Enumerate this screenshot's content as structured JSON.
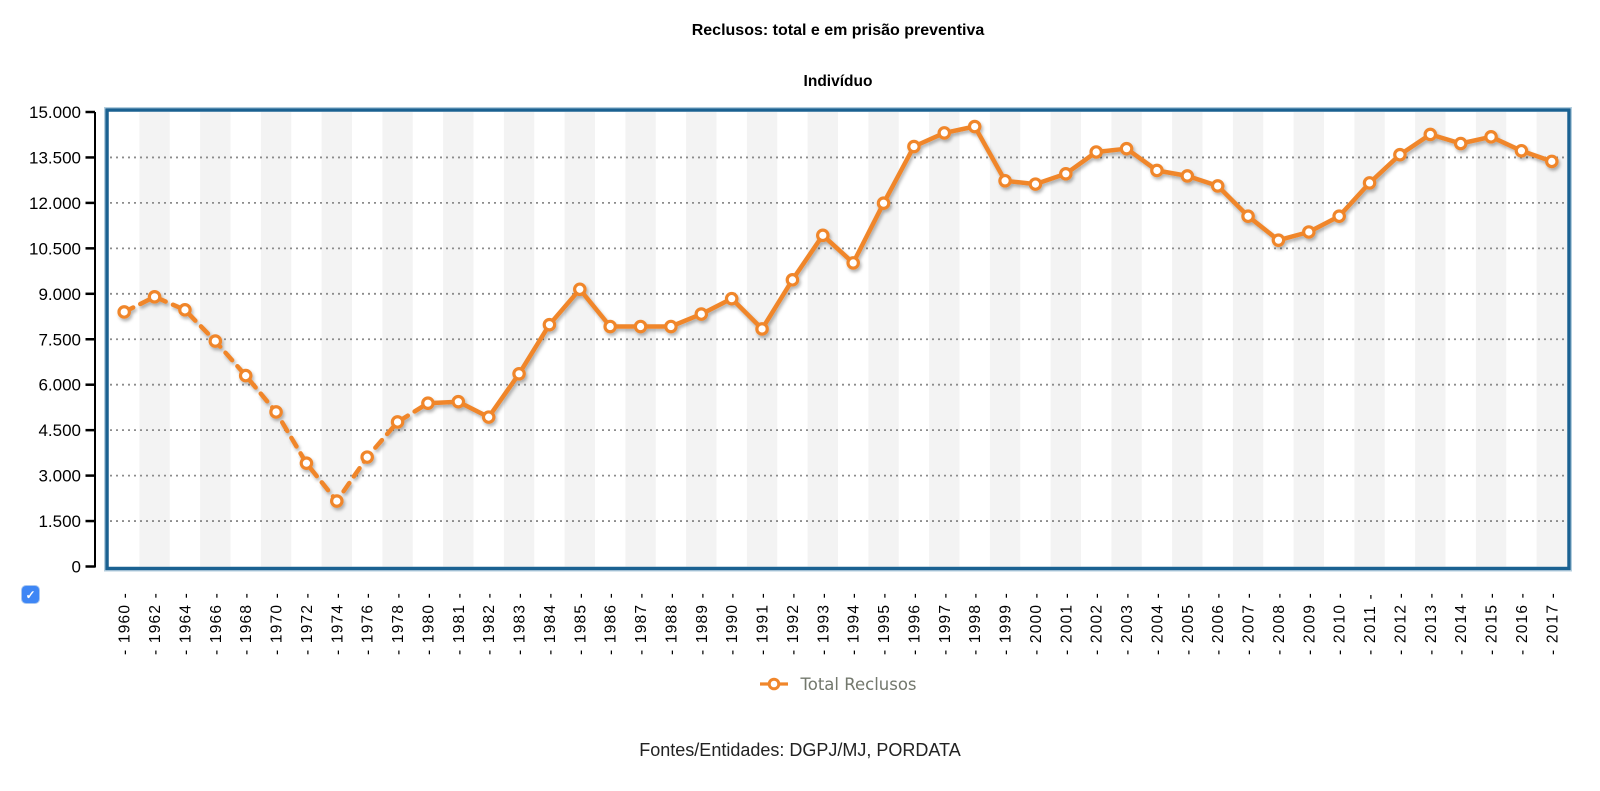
{
  "header": {
    "title": "Reclusos: total e em prisão preventiva",
    "subtitle": "Indivíduo"
  },
  "legend": {
    "label": "Total Reclusos",
    "marker": "open-circle-on-line-icon",
    "text_color": "#73786D"
  },
  "controls": {
    "series_checkbox": {
      "checked": true,
      "glyph": "✓"
    }
  },
  "footer": {
    "source": "Fontes/Entidades: DGPJ/MJ, PORDATA"
  },
  "colors": {
    "series": "#F0862B",
    "marker_fill": "#FFFFFF",
    "plot_border": "#1A6191",
    "plot_border_halo": "#B3CEDE",
    "grid": "#8C8C8C",
    "stripe": "#F3F3F3",
    "axis": "#000000",
    "checkbox": "#3E86F5"
  },
  "chart_data": {
    "type": "line",
    "title": "Reclusos: total e em prisão preventiva",
    "subtitle": "Indivíduo",
    "xlabel": "",
    "ylabel": "Indivíduo",
    "ylim": [
      0,
      15000
    ],
    "y_tick_step": 1500,
    "y_tick_labels": [
      "0",
      "1.500",
      "3.000",
      "4.500",
      "6.000",
      "7.500",
      "9.000",
      "10.500",
      "12.000",
      "13.500",
      "15.000"
    ],
    "grid": "horizontal-dotted",
    "background": "alternating-vertical-stripes",
    "legend_position": "bottom",
    "categories": [
      "1960",
      "1962",
      "1964",
      "1966",
      "1968",
      "1970",
      "1972",
      "1974",
      "1976",
      "1978",
      "1980",
      "1981",
      "1982",
      "1983",
      "1984",
      "1985",
      "1986",
      "1987",
      "1988",
      "1989",
      "1990",
      "1991",
      "1992",
      "1993",
      "1994",
      "1995",
      "1996",
      "1997",
      "1998",
      "1999",
      "2000",
      "2001",
      "2002",
      "2003",
      "2004",
      "2005",
      "2006",
      "2007",
      "2008",
      "2009",
      "2010",
      "2011",
      "2012",
      "2013",
      "2014",
      "2015",
      "2016",
      "2017"
    ],
    "series": [
      {
        "name": "Total Reclusos",
        "color": "#F0862B",
        "marker": "open-circle",
        "line_style": "dashed-until-1980-then-solid",
        "dashed_through_category": "1980",
        "values": [
          8400,
          8900,
          8470,
          7440,
          6300,
          5100,
          3410,
          2160,
          3610,
          4770,
          5390,
          5440,
          4930,
          6360,
          7980,
          9150,
          7920,
          7920,
          7920,
          8330,
          8840,
          7840,
          9460,
          10930,
          10020,
          11990,
          13860,
          14310,
          14520,
          12730,
          12620,
          12960,
          13680,
          13790,
          13070,
          12890,
          12560,
          11560,
          10770,
          11040,
          11560,
          12660,
          13590,
          14260,
          13960,
          14180,
          13720,
          13370
        ]
      }
    ]
  }
}
